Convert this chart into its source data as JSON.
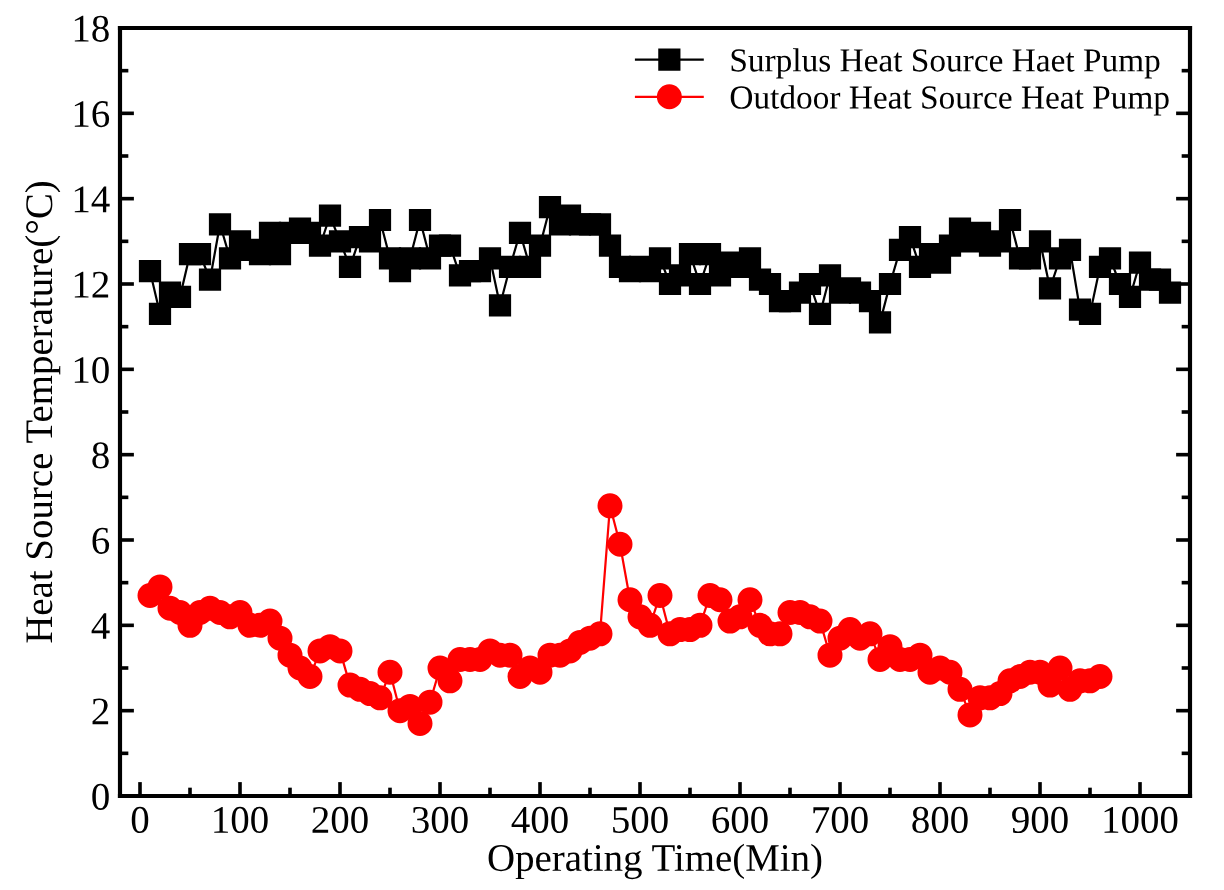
{
  "chart_data": {
    "type": "line",
    "xlabel": "Operating Time(Min)",
    "ylabel": "Heat Source Temperature(°C)",
    "xlim": [
      -20,
      1050
    ],
    "xticks": [
      0,
      100,
      200,
      300,
      400,
      500,
      600,
      700,
      800,
      900,
      1000
    ],
    "ylim": [
      0,
      18
    ],
    "yticks": [
      0,
      2,
      4,
      6,
      8,
      10,
      12,
      14,
      16,
      18
    ],
    "grid": false,
    "legend": "top right",
    "line_style": "solid",
    "series": [
      {
        "name": "Surplus Heat Source Haet Pump",
        "color": "#000000",
        "marker": "square",
        "x": [
          10,
          20,
          30,
          40,
          50,
          60,
          70,
          80,
          90,
          100,
          110,
          120,
          130,
          140,
          150,
          160,
          170,
          180,
          190,
          200,
          210,
          220,
          230,
          240,
          250,
          260,
          270,
          280,
          290,
          300,
          310,
          320,
          330,
          340,
          350,
          360,
          370,
          380,
          390,
          400,
          410,
          420,
          430,
          440,
          450,
          460,
          470,
          480,
          490,
          500,
          510,
          520,
          530,
          540,
          550,
          560,
          570,
          580,
          590,
          600,
          610,
          620,
          630,
          640,
          650,
          660,
          670,
          680,
          690,
          700,
          710,
          720,
          730,
          740,
          750,
          760,
          770,
          780,
          790,
          800,
          810,
          820,
          830,
          840,
          850,
          860,
          870,
          880,
          890,
          900,
          910,
          920,
          930,
          940,
          950,
          960,
          970,
          980,
          990,
          1000,
          1010,
          1020,
          1030
        ],
        "values": [
          12.3,
          11.3,
          11.8,
          11.7,
          12.7,
          12.7,
          12.1,
          13.4,
          12.6,
          13.0,
          12.8,
          12.7,
          13.2,
          12.7,
          13.2,
          13.3,
          13.2,
          12.9,
          13.6,
          13.0,
          12.4,
          13.1,
          13.0,
          13.5,
          12.6,
          12.3,
          12.6,
          13.5,
          12.6,
          12.9,
          12.9,
          12.2,
          12.3,
          12.3,
          12.6,
          11.5,
          12.4,
          13.2,
          12.4,
          12.9,
          13.8,
          13.4,
          13.6,
          13.4,
          13.4,
          13.4,
          12.9,
          12.4,
          12.3,
          12.4,
          12.3,
          12.6,
          12.0,
          12.2,
          12.7,
          12.0,
          12.7,
          12.2,
          12.5,
          12.4,
          12.6,
          12.1,
          12.0,
          11.6,
          11.6,
          11.8,
          12.0,
          11.3,
          12.2,
          11.8,
          11.9,
          11.8,
          11.6,
          11.1,
          12.0,
          12.8,
          13.1,
          12.4,
          12.7,
          12.5,
          12.9,
          13.3,
          13.0,
          13.2,
          12.9,
          13.0,
          13.5,
          12.6,
          12.6,
          13.0,
          11.9,
          12.6,
          12.8,
          11.4,
          11.3,
          12.4,
          12.6,
          12.0,
          11.7,
          12.5,
          12.1,
          12.1,
          11.8
        ]
      },
      {
        "name": "Outdoor Heat Source Heat Pump",
        "color": "#ff0000",
        "marker": "circle",
        "x": [
          10,
          20,
          30,
          40,
          50,
          60,
          70,
          80,
          90,
          100,
          110,
          120,
          130,
          140,
          150,
          160,
          170,
          180,
          190,
          200,
          210,
          220,
          230,
          240,
          250,
          260,
          270,
          280,
          290,
          300,
          310,
          320,
          330,
          340,
          350,
          360,
          370,
          380,
          390,
          400,
          410,
          420,
          430,
          440,
          450,
          460,
          470,
          480,
          490,
          500,
          510,
          520,
          530,
          540,
          550,
          560,
          570,
          580,
          590,
          600,
          610,
          620,
          630,
          640,
          650,
          660,
          670,
          680,
          690,
          700,
          710,
          720,
          730,
          740,
          750,
          760,
          770,
          780,
          790,
          800,
          810,
          820,
          830,
          840,
          850,
          860,
          870,
          880,
          890,
          900,
          910,
          920,
          930,
          940,
          950,
          960
        ],
        "values": [
          4.7,
          4.9,
          4.4,
          4.3,
          4.0,
          4.3,
          4.4,
          4.3,
          4.2,
          4.3,
          4.0,
          4.0,
          4.1,
          3.7,
          3.3,
          3.0,
          2.8,
          3.4,
          3.5,
          3.4,
          2.6,
          2.5,
          2.4,
          2.3,
          2.9,
          2.0,
          2.1,
          1.7,
          2.2,
          3.0,
          2.7,
          3.2,
          3.2,
          3.2,
          3.4,
          3.3,
          3.3,
          2.8,
          3.0,
          2.9,
          3.3,
          3.3,
          3.4,
          3.6,
          3.7,
          3.8,
          6.8,
          5.9,
          4.6,
          4.2,
          4.0,
          4.7,
          3.8,
          3.9,
          3.9,
          4.0,
          4.7,
          4.6,
          4.1,
          4.2,
          4.6,
          4.0,
          3.8,
          3.8,
          4.3,
          4.3,
          4.2,
          4.1,
          3.3,
          3.7,
          3.9,
          3.7,
          3.8,
          3.2,
          3.5,
          3.2,
          3.2,
          3.3,
          2.9,
          3.0,
          2.9,
          2.5,
          1.9,
          2.3,
          2.3,
          2.4,
          2.7,
          2.8,
          2.9,
          2.9,
          2.6,
          3.0,
          2.5,
          2.7,
          2.7,
          2.8
        ]
      }
    ]
  }
}
